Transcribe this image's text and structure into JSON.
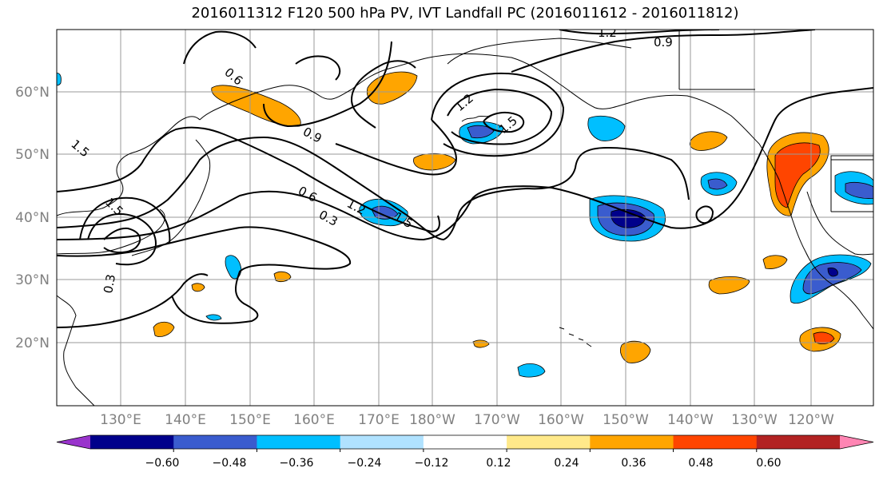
{
  "title": "2016011312 F120 500 hPa PV, IVT Landfall PC (2016011612 - 2016011812)",
  "lat_labels": [
    "60°N",
    "50°N",
    "40°N",
    "30°N",
    "20°N"
  ],
  "lon_labels": [
    "130°E",
    "140°E",
    "150°E",
    "160°E",
    "170°E",
    "180°W",
    "170°W",
    "160°W",
    "150°W",
    "140°W",
    "130°W",
    "120°W"
  ],
  "contour_labels": [
    "1.2",
    "0.9",
    "0.6",
    "0.9",
    "1.5",
    "1.2",
    "0.6",
    "0.3",
    "1.5",
    "1.5",
    "0.3",
    "1.2",
    "1.5"
  ],
  "colorbar": {
    "colors": [
      "#9933cc",
      "#00008b",
      "#3a5cce",
      "#00bfff",
      "#b0e2ff",
      "#ffffff",
      "#ffe98a",
      "#ffa500",
      "#ff4500",
      "#b22222",
      "#ff85b3"
    ],
    "ticks": [
      "−0.60",
      "−0.48",
      "−0.36",
      "−0.24",
      "−0.12",
      "0.12",
      "0.24",
      "0.36",
      "0.48",
      "0.60"
    ]
  }
}
